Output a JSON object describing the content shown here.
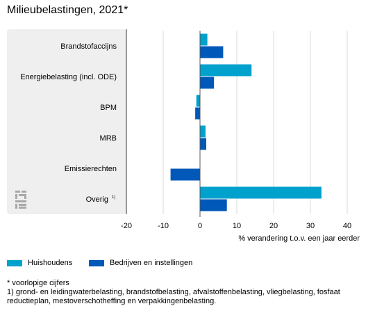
{
  "chart_data": {
    "type": "bar",
    "orientation": "horizontal",
    "title": "Milieubelastingen, 2021*",
    "categories": [
      "Brandstofaccijns",
      "Energiebelasting (incl. ODE)",
      "BPM",
      "MRB",
      "Emissierechten",
      "Overig"
    ],
    "category_superscripts": [
      "",
      "",
      "",
      "",
      "",
      "1)"
    ],
    "series": [
      {
        "name": "Huishoudens",
        "color": "#00a1cd",
        "values": [
          2,
          14,
          -1,
          1.5,
          null,
          33
        ]
      },
      {
        "name": "Bedrijven en instellingen",
        "color": "#0058b8",
        "values": [
          6.3,
          3.8,
          -1.3,
          1.7,
          -8,
          7.3
        ]
      }
    ],
    "xlabel": "% verandering t.o.v. een jaar eerder",
    "xlim": [
      -20,
      40
    ],
    "xticks": [
      -20,
      -10,
      0,
      10,
      20,
      30,
      40
    ],
    "grid": true,
    "legend_position": "bottom-left"
  },
  "legend": {
    "items": [
      {
        "label": "Huishoudens",
        "color": "#00a1cd"
      },
      {
        "label": "Bedrijven en instellingen",
        "color": "#0058b8"
      }
    ]
  },
  "notes": {
    "preliminary": "* voorlopige cijfers",
    "footnote_1": "1) grond- en leidingwaterbelasting, brandstofbelasting, afvalstoffenbelasting, vliegbelasting, fosfaat reductieplan, mestoverschotheffing en verpakkingenbelasting."
  },
  "colors": {
    "category_panel": "#efefef",
    "grid": "#d9d9d9",
    "axis": "#555555"
  },
  "logo_icon": "cbs-logo-icon"
}
